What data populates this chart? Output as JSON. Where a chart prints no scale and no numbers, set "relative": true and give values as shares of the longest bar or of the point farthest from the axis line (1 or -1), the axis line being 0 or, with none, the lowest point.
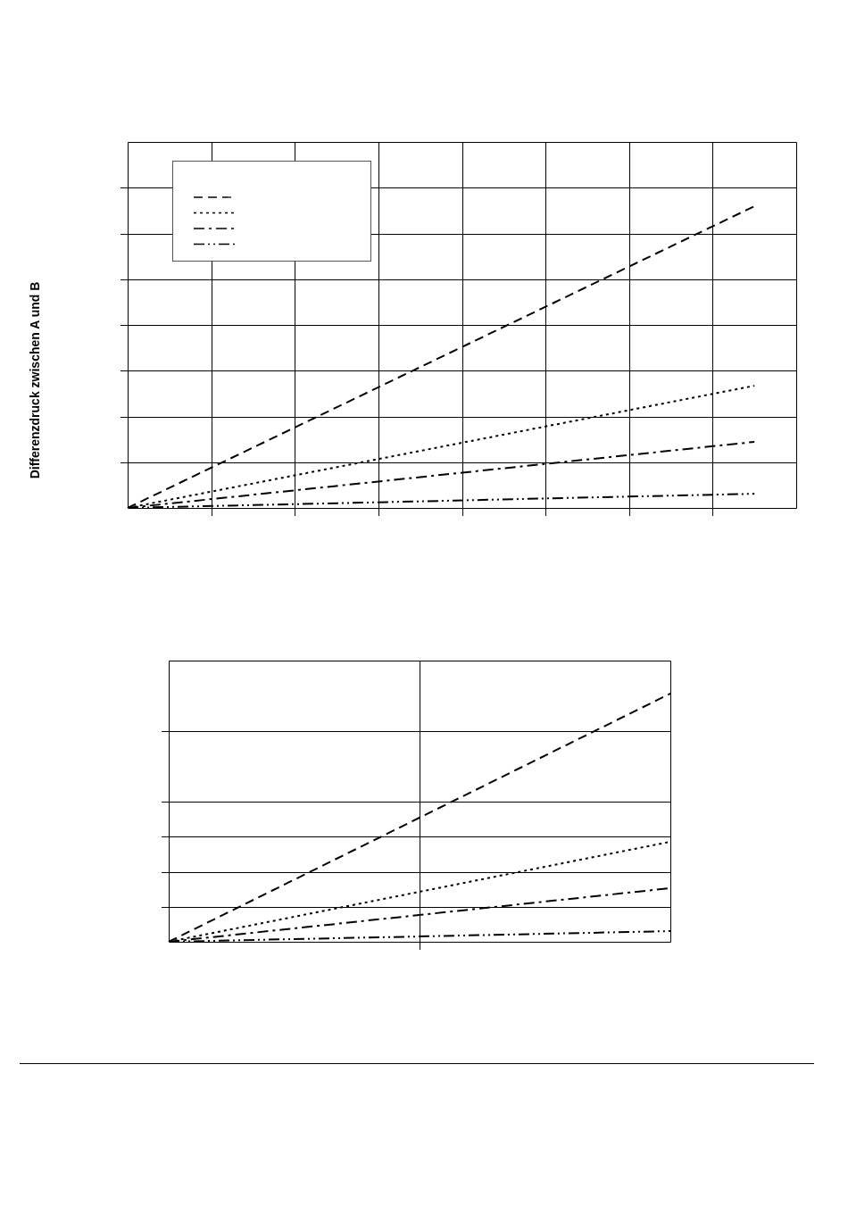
{
  "chart_data": [
    {
      "type": "line",
      "ylabel": "Differenzdruck zwischen A und B",
      "relative": true,
      "grid": true,
      "tick_labels": false,
      "categories": [
        null,
        null,
        null,
        null,
        null,
        null,
        null,
        null,
        null,
        null,
        null,
        null,
        null,
        null,
        null,
        null,
        null
      ],
      "series": [
        {
          "color": "#000000",
          "line_style": "dashed",
          "values": [
            0,
            null,
            null,
            null,
            null,
            null,
            null,
            null,
            null,
            null,
            null,
            null,
            null,
            null,
            null,
            1,
            null
          ]
        },
        {
          "color": "#000000",
          "line_style": "dotted",
          "values": [
            0,
            null,
            null,
            null,
            null,
            null,
            null,
            null,
            null,
            null,
            null,
            null,
            null,
            null,
            null,
            0.405,
            null
          ]
        },
        {
          "color": "#000000",
          "line_style": "dashdot",
          "values": [
            0,
            null,
            null,
            null,
            null,
            null,
            null,
            null,
            null,
            null,
            null,
            null,
            null,
            null,
            null,
            0.219,
            null
          ]
        },
        {
          "color": "#000000",
          "line_style": "dashdotdot",
          "values": [
            0,
            null,
            null,
            null,
            null,
            null,
            null,
            null,
            null,
            null,
            null,
            null,
            null,
            null,
            null,
            0.047,
            null
          ]
        }
      ]
    },
    {
      "type": "line",
      "relative": true,
      "grid": true,
      "tick_labels": false,
      "categories": [
        null,
        null,
        null
      ],
      "series": [
        {
          "color": "#000000",
          "line_style": "dashed",
          "values": [
            0,
            null,
            1
          ]
        },
        {
          "color": "#000000",
          "line_style": "dotted",
          "values": [
            0,
            null,
            0.403
          ]
        },
        {
          "color": "#000000",
          "line_style": "dashdot",
          "values": [
            0,
            null,
            0.216
          ]
        },
        {
          "color": "#000000",
          "line_style": "dashdotdot",
          "values": [
            0,
            null,
            0.043
          ]
        }
      ]
    }
  ]
}
